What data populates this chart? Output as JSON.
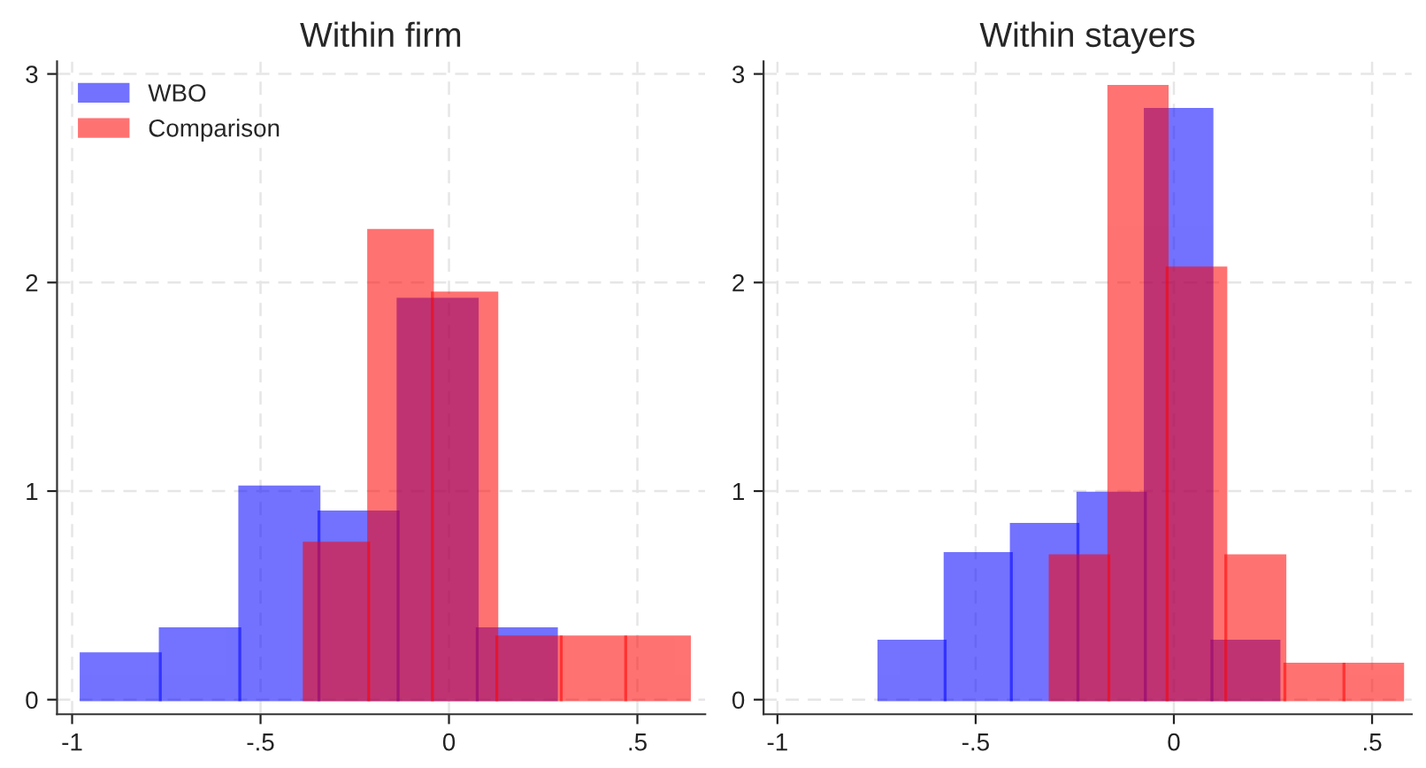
{
  "chart_data": [
    {
      "type": "histogram",
      "title": "Within firm",
      "xlim": [
        -1.04,
        0.68
      ],
      "ylim": [
        -0.07,
        3.06
      ],
      "xticks": [
        {
          "value": -1,
          "label": "-1"
        },
        {
          "value": -0.5,
          "label": "-.5"
        },
        {
          "value": 0,
          "label": "0"
        },
        {
          "value": 0.5,
          "label": ".5"
        }
      ],
      "yticks": [
        0,
        1,
        2,
        3
      ],
      "grid": true,
      "legend": "top left",
      "bins": [
        -0.976,
        -0.766,
        -0.555,
        -0.345,
        -0.135,
        0.075,
        0.285
      ],
      "series": [
        {
          "name": "WBO",
          "color": "#0000ff",
          "values": [
            0.22,
            0.34,
            1.02,
            0.9,
            1.92,
            0.34
          ]
        },
        {
          "name": "Comparison",
          "color": "#ff0000",
          "bins": [
            -0.384,
            -0.213,
            -0.044,
            0.127,
            0.298,
            0.469,
            0.638
          ],
          "values": [
            0.75,
            2.25,
            1.95,
            0.3,
            0.3,
            0.3
          ]
        }
      ]
    },
    {
      "type": "histogram",
      "title": "Within stayers",
      "xlim": [
        -1.035,
        0.6
      ],
      "ylim": [
        -0.07,
        3.06
      ],
      "xticks": [
        {
          "value": -1,
          "label": "-1"
        },
        {
          "value": -0.5,
          "label": "-.5"
        },
        {
          "value": 0,
          "label": "0"
        },
        {
          "value": 0.5,
          "label": ".5"
        }
      ],
      "yticks": [
        0,
        1,
        2,
        3
      ],
      "grid": true,
      "bins": [
        -0.744,
        -0.577,
        -0.41,
        -0.242,
        -0.072,
        0.096,
        0.265
      ],
      "series": [
        {
          "color": "#0000ff",
          "values": [
            0.28,
            0.7,
            0.84,
            0.99,
            2.83,
            0.28
          ]
        },
        {
          "color": "#ff0000",
          "bins": [
            -0.312,
            -0.164,
            -0.017,
            0.131,
            0.28,
            0.429,
            0.577
          ],
          "values": [
            0.69,
            2.94,
            2.07,
            0.69,
            0.17,
            0.17
          ]
        }
      ]
    }
  ]
}
